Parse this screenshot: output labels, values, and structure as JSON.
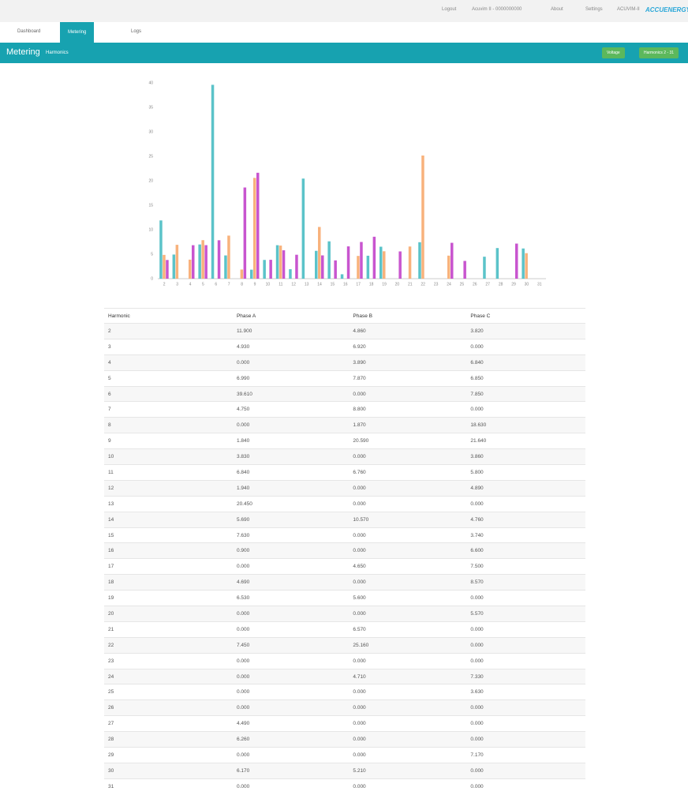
{
  "header": {
    "logout": "Logout",
    "device": "Acuvim II - 0000000000",
    "about": "About",
    "settings": "Settings",
    "model": "ACUVIM-II",
    "logo": "ACCUENERGY"
  },
  "nav": [
    "Dashboard",
    "Metering",
    "Logs"
  ],
  "page": {
    "title": "Metering",
    "subtitle": "Harmonics",
    "buttons": [
      "Voltage",
      "Harmonics 2 - 31"
    ]
  },
  "chart": {
    "ylim": [
      0,
      40
    ],
    "yticks": [
      0,
      5,
      10,
      15,
      20,
      25,
      30,
      35,
      40
    ],
    "colors": [
      "#5bc3c9",
      "#f8b27c",
      "#c855cf"
    ]
  },
  "table": {
    "columns": [
      "Harmonic",
      "Phase A",
      "Phase B",
      "Phase C"
    ],
    "rows": [
      [
        "2",
        "11.900",
        "4.860",
        "3.820"
      ],
      [
        "3",
        "4.930",
        "6.920",
        "0.000"
      ],
      [
        "4",
        "0.000",
        "3.890",
        "6.840"
      ],
      [
        "5",
        "6.990",
        "7.870",
        "6.850"
      ],
      [
        "6",
        "39.610",
        "0.000",
        "7.850"
      ],
      [
        "7",
        "4.750",
        "8.800",
        "0.000"
      ],
      [
        "8",
        "0.000",
        "1.870",
        "18.630"
      ],
      [
        "9",
        "1.840",
        "20.590",
        "21.640"
      ],
      [
        "10",
        "3.830",
        "0.000",
        "3.860"
      ],
      [
        "11",
        "6.840",
        "6.760",
        "5.800"
      ],
      [
        "12",
        "1.940",
        "0.000",
        "4.890"
      ],
      [
        "13",
        "20.450",
        "0.000",
        "0.000"
      ],
      [
        "14",
        "5.690",
        "10.570",
        "4.760"
      ],
      [
        "15",
        "7.630",
        "0.000",
        "3.740"
      ],
      [
        "16",
        "0.900",
        "0.000",
        "6.600"
      ],
      [
        "17",
        "0.000",
        "4.650",
        "7.500"
      ],
      [
        "18",
        "4.690",
        "0.000",
        "8.570"
      ],
      [
        "19",
        "6.530",
        "5.600",
        "0.000"
      ],
      [
        "20",
        "0.000",
        "0.000",
        "5.570"
      ],
      [
        "21",
        "0.000",
        "6.570",
        "0.000"
      ],
      [
        "22",
        "7.450",
        "25.160",
        "0.000"
      ],
      [
        "23",
        "0.000",
        "0.000",
        "0.000"
      ],
      [
        "24",
        "0.000",
        "4.710",
        "7.330"
      ],
      [
        "25",
        "0.000",
        "0.000",
        "3.630"
      ],
      [
        "26",
        "0.000",
        "0.000",
        "0.000"
      ],
      [
        "27",
        "4.490",
        "0.000",
        "0.000"
      ],
      [
        "28",
        "6.260",
        "0.000",
        "0.000"
      ],
      [
        "29",
        "0.000",
        "0.000",
        "7.170"
      ],
      [
        "30",
        "6.170",
        "5.210",
        "0.000"
      ],
      [
        "31",
        "0.000",
        "0.000",
        "0.000"
      ]
    ]
  }
}
